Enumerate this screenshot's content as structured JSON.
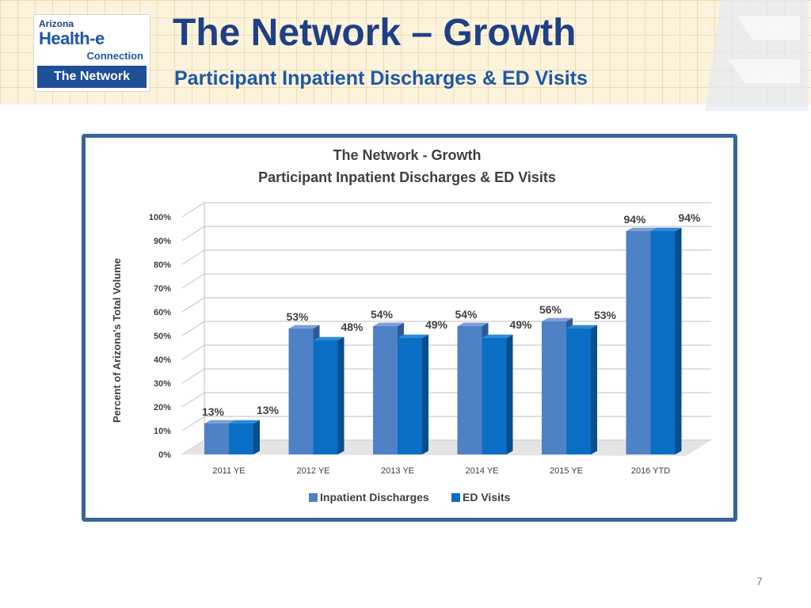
{
  "slide": {
    "title": "The Network – Growth",
    "subtitle": "Participant Inpatient Discharges & ED Visits",
    "page_number": "7"
  },
  "logo": {
    "line1": "Arizona",
    "line2": "Health-e",
    "line3": "Connection",
    "bar": "The Network"
  },
  "colors": {
    "title": "#1f3f86",
    "frame": "#3a6596",
    "inpatient": "#4f81c7",
    "ed": "#0a6fc4"
  },
  "chart_data": {
    "type": "bar",
    "title": "The Network - Growth",
    "subtitle": "Participant Inpatient Discharges & ED Visits",
    "ylabel": "Percent of Arizona's Total Volume",
    "xlabel": "",
    "ylim": [
      0,
      100
    ],
    "yticks": [
      "0%",
      "10%",
      "20%",
      "30%",
      "40%",
      "50%",
      "60%",
      "70%",
      "80%",
      "90%",
      "100%"
    ],
    "categories": [
      "2011 YE",
      "2012 YE",
      "2013 YE",
      "2014 YE",
      "2015 YE",
      "2016 YTD"
    ],
    "series": [
      {
        "name": "Inpatient Discharges",
        "values": [
          13,
          53,
          54,
          54,
          56,
          94
        ],
        "labels": [
          "13%",
          "53%",
          "54%",
          "54%",
          "56%",
          "94%"
        ]
      },
      {
        "name": "ED Visits",
        "values": [
          13,
          48,
          49,
          49,
          53,
          94
        ],
        "labels": [
          "13%",
          "48%",
          "49%",
          "49%",
          "53%",
          "94%"
        ]
      }
    ],
    "legend": "bottom",
    "grid": true
  }
}
